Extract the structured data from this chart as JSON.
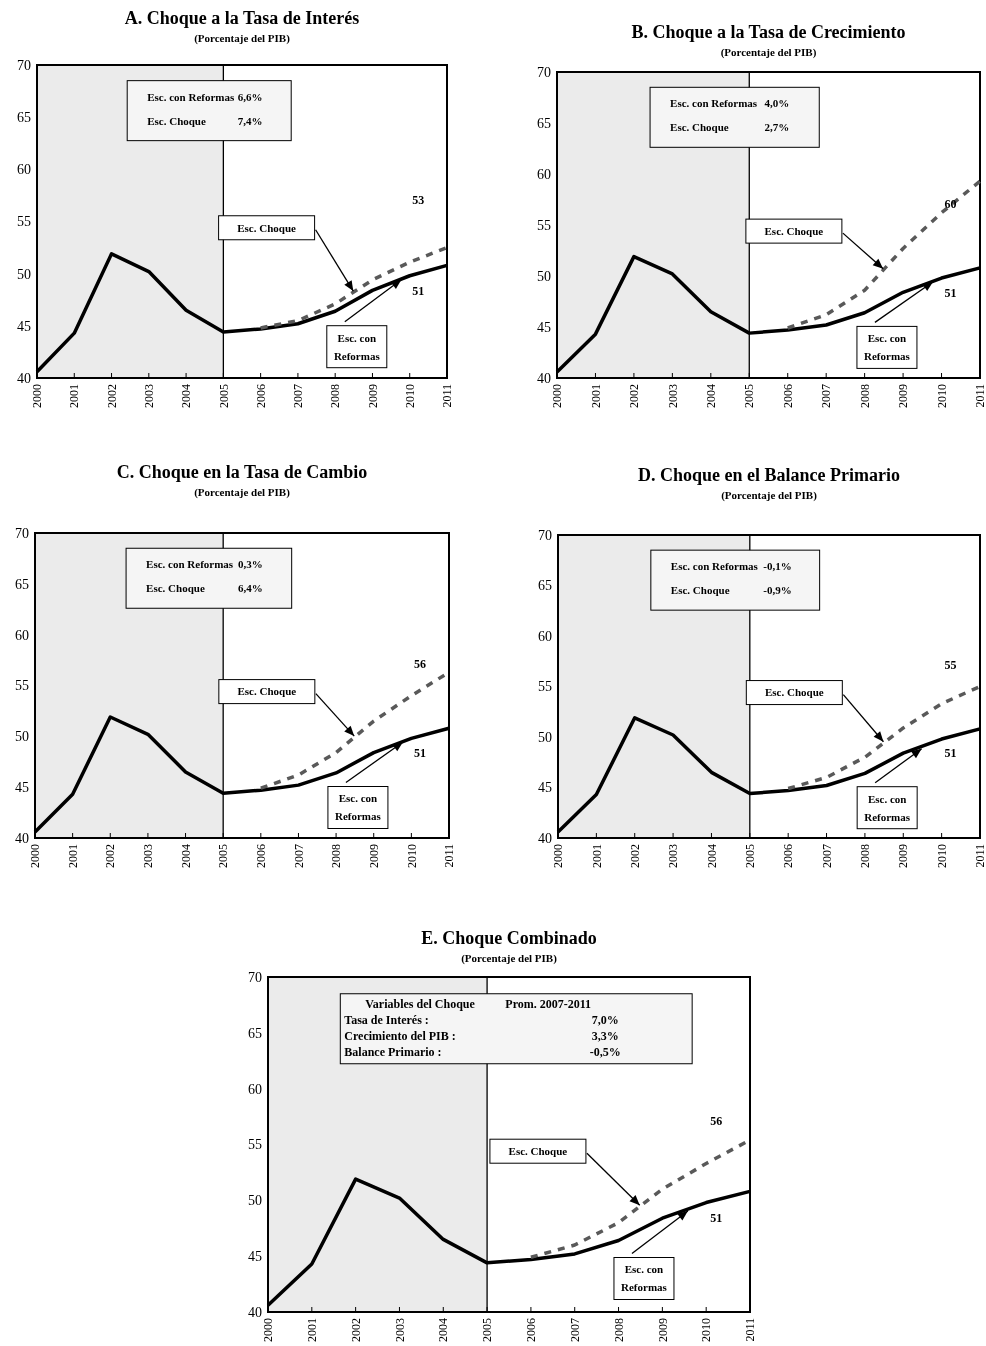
{
  "chart_data": [
    {
      "type": "line",
      "title": "A. Choque a la Tasa de Interés",
      "subtitle": "(Porcentaje del PIB)",
      "x": [
        2000,
        2001,
        2002,
        2003,
        2004,
        2005,
        2006,
        2007,
        2008,
        2009,
        2010,
        2011
      ],
      "xlim": [
        2000,
        2011
      ],
      "xticks": [
        2000,
        2001,
        2002,
        2003,
        2004,
        2005,
        2006,
        2007,
        2008,
        2009,
        2010,
        2011
      ],
      "ylim": [
        40,
        70
      ],
      "yticks": [
        40,
        45,
        50,
        55,
        60,
        65,
        70
      ],
      "grid": false,
      "marker": "none",
      "series": [
        {
          "color": "#000000",
          "line_style": "solid",
          "values": [
            40.6,
            44.3,
            51.9,
            50.2,
            46.5,
            44.4,
            44.7,
            45.2,
            46.4,
            48.4,
            49.8,
            50.8
          ]
        },
        {
          "color": "#595959",
          "line_style": "dashed",
          "values": [
            null,
            null,
            null,
            null,
            null,
            null,
            44.8,
            45.5,
            47.1,
            49.4,
            51.1,
            52.5
          ]
        }
      ],
      "bands": [
        {
          "axis": "x",
          "from": 2000,
          "to": 2005,
          "color": "#ebebeb"
        }
      ],
      "ref_lines": [
        {
          "axis": "x",
          "value": 2005,
          "color": "#000000"
        }
      ],
      "annotations": [
        "Esc. con Reformas",
        "6,6%",
        "Esc. Choque",
        "7,4%",
        "Esc. Choque",
        "53",
        "51",
        {
          "text": "Esc. con Reformas",
          "x": 2009.8,
          "y": 49.5
        }
      ]
    },
    {
      "type": "line",
      "title": "B. Choque a la Tasa de Crecimiento",
      "subtitle": "(Porcentaje del PIB)",
      "x": [
        2000,
        2001,
        2002,
        2003,
        2004,
        2005,
        2006,
        2007,
        2008,
        2009,
        2010,
        2011
      ],
      "xlim": [
        2000,
        2011
      ],
      "xticks": [
        2000,
        2001,
        2002,
        2003,
        2004,
        2005,
        2006,
        2007,
        2008,
        2009,
        2010,
        2011
      ],
      "ylim": [
        40,
        70
      ],
      "yticks": [
        40,
        45,
        50,
        55,
        60,
        65,
        70
      ],
      "grid": false,
      "marker": "none",
      "series": [
        {
          "color": "#000000",
          "line_style": "solid",
          "values": [
            40.6,
            44.3,
            51.9,
            50.2,
            46.5,
            44.4,
            44.7,
            45.2,
            46.4,
            48.4,
            49.8,
            50.8
          ]
        },
        {
          "color": "#595959",
          "line_style": "dashed",
          "values": [
            null,
            null,
            null,
            null,
            null,
            null,
            44.9,
            46.2,
            48.6,
            52.7,
            56.2,
            59.3
          ]
        }
      ],
      "bands": [
        {
          "axis": "x",
          "from": 2000,
          "to": 2005,
          "color": "#ebebeb"
        }
      ],
      "ref_lines": [
        {
          "axis": "x",
          "value": 2005,
          "color": "#000000"
        }
      ],
      "annotations": [
        "Esc. con Reformas",
        "4,0%",
        "Esc. Choque",
        "2,7%",
        "Esc. Choque",
        "60",
        "51",
        {
          "text": "Esc. con Reformas",
          "x": 2009.8,
          "y": 49.5
        }
      ]
    },
    {
      "type": "line",
      "title": "C. Choque en la Tasa de Cambio",
      "subtitle": "(Porcentaje del PIB)",
      "x": [
        2000,
        2001,
        2002,
        2003,
        2004,
        2005,
        2006,
        2007,
        2008,
        2009,
        2010,
        2011
      ],
      "xlim": [
        2000,
        2011
      ],
      "xticks": [
        2000,
        2001,
        2002,
        2003,
        2004,
        2005,
        2006,
        2007,
        2008,
        2009,
        2010,
        2011
      ],
      "ylim": [
        40,
        70
      ],
      "yticks": [
        40,
        45,
        50,
        55,
        60,
        65,
        70
      ],
      "grid": false,
      "marker": "none",
      "series": [
        {
          "color": "#000000",
          "line_style": "solid",
          "values": [
            40.6,
            44.3,
            51.9,
            50.2,
            46.5,
            44.4,
            44.7,
            45.2,
            46.4,
            48.4,
            49.8,
            50.8
          ]
        },
        {
          "color": "#595959",
          "line_style": "dashed",
          "values": [
            null,
            null,
            null,
            null,
            null,
            null,
            44.9,
            46.2,
            48.4,
            51.5,
            54.0,
            56.3
          ]
        }
      ],
      "bands": [
        {
          "axis": "x",
          "from": 2000,
          "to": 2005,
          "color": "#ebebeb"
        }
      ],
      "ref_lines": [
        {
          "axis": "x",
          "value": 2005,
          "color": "#000000"
        }
      ],
      "annotations": [
        "Esc. con Reformas",
        "0,3%",
        "Esc. Choque",
        "6,4%",
        "Esc. Choque",
        "56",
        "51",
        {
          "text": "Esc. con Reformas",
          "x": 2009.8,
          "y": 49.5
        }
      ]
    },
    {
      "type": "line",
      "title": "D. Choque en el Balance Primario",
      "subtitle": "(Porcentaje del PIB)",
      "x": [
        2000,
        2001,
        2002,
        2003,
        2004,
        2005,
        2006,
        2007,
        2008,
        2009,
        2010,
        2011
      ],
      "xlim": [
        2000,
        2011
      ],
      "xticks": [
        2000,
        2001,
        2002,
        2003,
        2004,
        2005,
        2006,
        2007,
        2008,
        2009,
        2010,
        2011
      ],
      "ylim": [
        40,
        70
      ],
      "yticks": [
        40,
        45,
        50,
        55,
        60,
        65,
        70
      ],
      "grid": false,
      "marker": "none",
      "series": [
        {
          "color": "#000000",
          "line_style": "solid",
          "values": [
            40.6,
            44.3,
            51.9,
            50.2,
            46.5,
            44.4,
            44.7,
            45.2,
            46.4,
            48.4,
            49.8,
            50.8
          ]
        },
        {
          "color": "#595959",
          "line_style": "dashed",
          "values": [
            null,
            null,
            null,
            null,
            null,
            null,
            44.9,
            46.0,
            48.0,
            50.9,
            53.3,
            55.0
          ]
        }
      ],
      "bands": [
        {
          "axis": "x",
          "from": 2000,
          "to": 2005,
          "color": "#ebebeb"
        }
      ],
      "ref_lines": [
        {
          "axis": "x",
          "value": 2005,
          "color": "#000000"
        }
      ],
      "annotations": [
        "Esc. con Reformas",
        "-0,1%",
        "Esc. Choque",
        "-0,9%",
        "Esc. Choque",
        "55",
        "51",
        {
          "text": "Esc. con Reformas",
          "x": 2009.5,
          "y": 48.9
        }
      ]
    },
    {
      "type": "line",
      "title": "E. Choque Combinado",
      "subtitle": "(Porcentaje del PIB)",
      "x": [
        2000,
        2001,
        2002,
        2003,
        2004,
        2005,
        2006,
        2007,
        2008,
        2009,
        2010,
        2011
      ],
      "xlim": [
        2000,
        2011
      ],
      "xticks": [
        2000,
        2001,
        2002,
        2003,
        2004,
        2005,
        2006,
        2007,
        2008,
        2009,
        2010,
        2011
      ],
      "ylim": [
        40,
        70
      ],
      "yticks": [
        40,
        45,
        50,
        55,
        60,
        65,
        70
      ],
      "grid": false,
      "marker": "none",
      "series": [
        {
          "color": "#000000",
          "line_style": "solid",
          "values": [
            40.6,
            44.3,
            51.9,
            50.2,
            46.5,
            44.4,
            44.7,
            45.2,
            46.4,
            48.4,
            49.8,
            50.8
          ]
        },
        {
          "color": "#595959",
          "line_style": "dashed",
          "values": [
            null,
            null,
            null,
            null,
            null,
            null,
            44.9,
            46.0,
            48.0,
            51.0,
            53.3,
            55.4
          ]
        }
      ],
      "bands": [
        {
          "axis": "x",
          "from": 2000,
          "to": 2005,
          "color": "#ebebeb"
        }
      ],
      "ref_lines": [
        {
          "axis": "x",
          "value": 2005,
          "color": "#000000"
        }
      ],
      "annotations": [
        "Variables del Choque",
        "Prom. 2007-2011",
        "Tasa de Interés :",
        "7,0%",
        "Crecimiento del PIB  :",
        "3,3%",
        "Balance Primario  :",
        "-0,5%",
        "Esc. Choque",
        "56",
        "51",
        {
          "text": "Esc. con Reformas",
          "x": 2009.6,
          "y": 49.1
        }
      ]
    }
  ]
}
